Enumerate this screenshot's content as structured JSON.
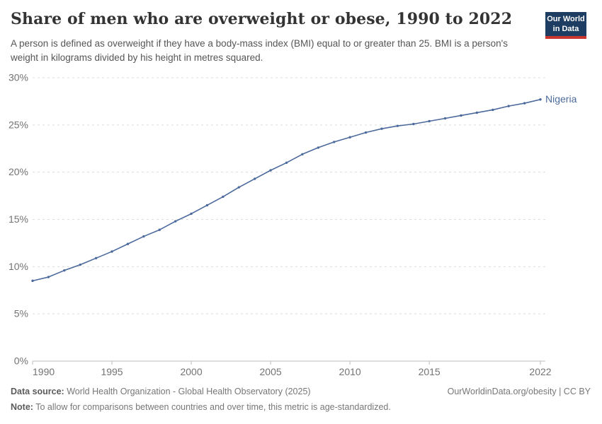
{
  "header": {
    "title": "Share of men who are overweight or obese, 1990 to 2022",
    "subtitle": "A person is defined as overweight if they have a body-mass index (BMI) equal to or greater than 25. BMI is a person's weight in kilograms divided by his height in metres squared.",
    "logo": {
      "line1": "Our World",
      "line2": "in Data"
    }
  },
  "chart_data": {
    "type": "line",
    "title": "Share of men who are overweight or obese, 1990 to 2022",
    "xlabel": "",
    "ylabel": "",
    "xlim": [
      1990,
      2022
    ],
    "ylim": [
      0,
      30
    ],
    "grid": "horizontal-dashed",
    "legend_position": "end-of-line-label",
    "x_ticks": [
      1990,
      1995,
      2000,
      2005,
      2010,
      2015,
      2022
    ],
    "y_ticks": [
      0,
      5,
      10,
      15,
      20,
      25,
      30
    ],
    "y_tick_suffix": "%",
    "series": [
      {
        "name": "Nigeria",
        "color": "#4c6a9c",
        "years": [
          1990,
          1991,
          1992,
          1993,
          1994,
          1995,
          1996,
          1997,
          1998,
          1999,
          2000,
          2001,
          2002,
          2003,
          2004,
          2005,
          2006,
          2007,
          2008,
          2009,
          2010,
          2011,
          2012,
          2013,
          2014,
          2015,
          2016,
          2017,
          2018,
          2019,
          2020,
          2021,
          2022
        ],
        "values": [
          8.5,
          8.9,
          9.6,
          10.2,
          10.9,
          11.6,
          12.4,
          13.2,
          13.9,
          14.8,
          15.6,
          16.5,
          17.4,
          18.4,
          19.3,
          20.2,
          21.0,
          21.9,
          22.6,
          23.2,
          23.7,
          24.2,
          24.6,
          24.9,
          25.1,
          25.4,
          25.7,
          26.0,
          26.3,
          26.6,
          27.0,
          27.3,
          27.7
        ]
      }
    ]
  },
  "footer": {
    "source_label": "Data source:",
    "source_text": " World Health Organization - Global Health Observatory (2025)",
    "note_label": "Note:",
    "note_text": " To allow for comparisons between countries and over time, this metric is age-standardized.",
    "link": "OurWorldinData.org/obesity | CC BY"
  },
  "colors": {
    "line": "#4c6a9c",
    "logo_navy": "#1d3d63",
    "logo_red": "#c9362e",
    "gridline": "#dcdcdc",
    "axis": "#bdbdbd",
    "tick_text": "#737373"
  }
}
